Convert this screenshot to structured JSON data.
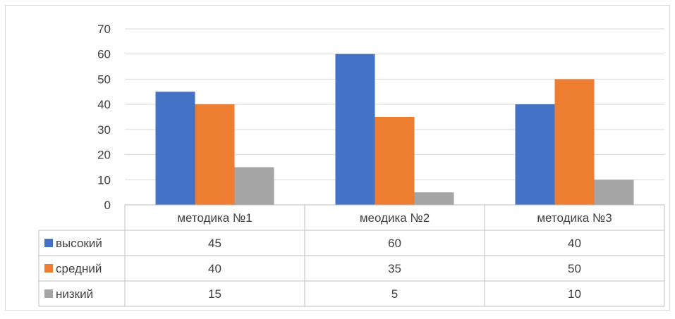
{
  "chart_data": {
    "type": "bar",
    "categories": [
      "методика №1",
      "меодика №2",
      "методика №3"
    ],
    "series": [
      {
        "name": "высокий",
        "values": [
          45,
          60,
          40
        ],
        "color": "#4472C4"
      },
      {
        "name": "средний",
        "values": [
          40,
          35,
          50
        ],
        "color": "#ED7D31"
      },
      {
        "name": "низкий",
        "values": [
          15,
          5,
          10
        ],
        "color": "#A5A5A5"
      }
    ],
    "ylim": [
      0,
      70
    ],
    "yticks": [
      0,
      10,
      20,
      30,
      40,
      50,
      60,
      70
    ],
    "grid": true,
    "legend": "data-table-left"
  }
}
